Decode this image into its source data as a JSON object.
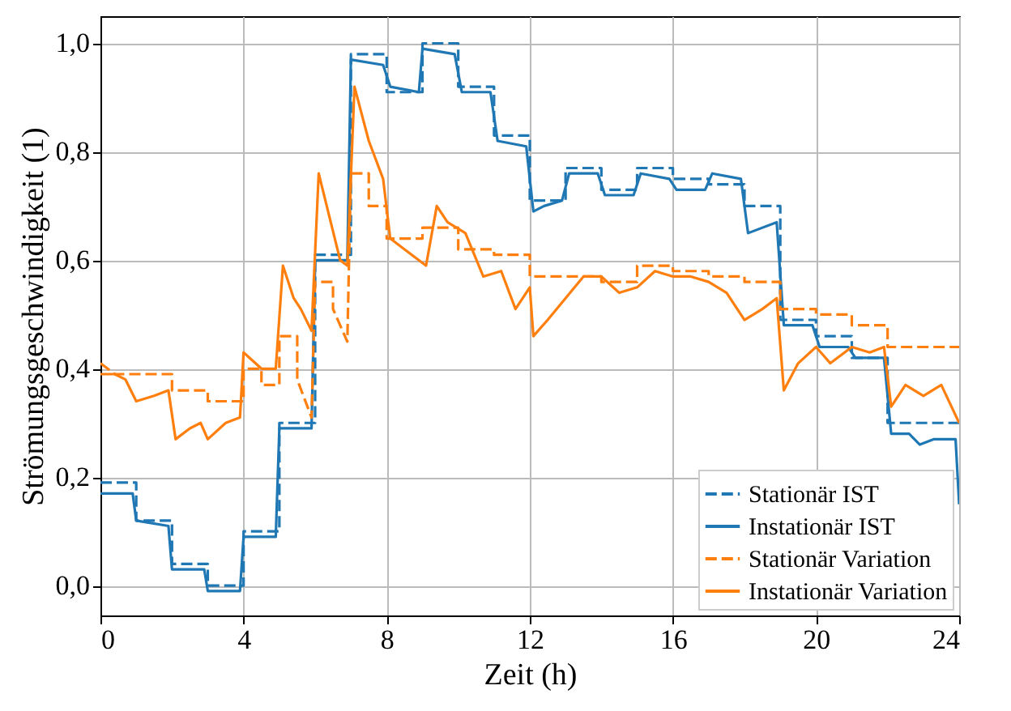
{
  "chart_data": {
    "type": "line",
    "xlabel": "Zeit (h)",
    "ylabel": "Strömungsgeschwindigkeit (1)",
    "xlim": [
      0,
      24
    ],
    "xticks": [
      0,
      4,
      8,
      12,
      16,
      20,
      24
    ],
    "ylim": [
      -0.055,
      1.05
    ],
    "yticks": [
      {
        "value": 0,
        "label": "0,0"
      },
      {
        "value": 0.2,
        "label": "0,2"
      },
      {
        "value": 0.4,
        "label": "0,4"
      },
      {
        "value": 0.6,
        "label": "0,6"
      },
      {
        "value": 0.8,
        "label": "0,8"
      },
      {
        "value": 1,
        "label": "1,0"
      }
    ],
    "grid": true,
    "legend": "bottom right",
    "series": [
      {
        "name": "Stationär IST",
        "color": "#1f77b4",
        "line_style": "dashed",
        "x": [
          0,
          1,
          1,
          2,
          2,
          3,
          3,
          4,
          4,
          5,
          5,
          6,
          6,
          7,
          7,
          8,
          8,
          9,
          9,
          10,
          10,
          11,
          11,
          12,
          12,
          13,
          13,
          14,
          14,
          15,
          15,
          16,
          16,
          17,
          17,
          18,
          18,
          19,
          19,
          20,
          20,
          21,
          21,
          22,
          22,
          24
        ],
        "values": [
          0.19,
          0.19,
          0.12,
          0.12,
          0.04,
          0.04,
          0.0,
          0.0,
          0.1,
          0.1,
          0.3,
          0.3,
          0.61,
          0.61,
          0.98,
          0.98,
          0.91,
          0.91,
          1.0,
          1.0,
          0.92,
          0.92,
          0.83,
          0.83,
          0.71,
          0.71,
          0.77,
          0.77,
          0.73,
          0.73,
          0.77,
          0.77,
          0.75,
          0.75,
          0.74,
          0.74,
          0.7,
          0.7,
          0.49,
          0.49,
          0.46,
          0.46,
          0.42,
          0.42,
          0.3,
          0.3
        ]
      },
      {
        "name": "Instationär IST",
        "color": "#1f77b4",
        "line_style": "solid",
        "x": [
          0,
          0.9,
          1,
          1.9,
          2,
          2.9,
          3,
          3.9,
          4,
          4.9,
          5,
          5.9,
          6,
          6.9,
          7,
          7.9,
          8.1,
          8.9,
          9,
          9.9,
          10.1,
          10.9,
          11.1,
          11.9,
          12.1,
          12.4,
          12.9,
          13.1,
          13.9,
          14.1,
          14.9,
          15.1,
          15.9,
          16.1,
          16.9,
          17.1,
          17.9,
          18.1,
          18.9,
          19.1,
          19.9,
          20.1,
          20.9,
          21.1,
          21.9,
          22.1,
          22.6,
          22.9,
          23.3,
          23.9,
          24
        ],
        "values": [
          0.17,
          0.17,
          0.12,
          0.11,
          0.03,
          0.03,
          -0.01,
          -0.01,
          0.09,
          0.09,
          0.29,
          0.29,
          0.6,
          0.6,
          0.97,
          0.96,
          0.92,
          0.91,
          0.99,
          0.98,
          0.91,
          0.91,
          0.82,
          0.81,
          0.69,
          0.7,
          0.71,
          0.76,
          0.76,
          0.72,
          0.72,
          0.76,
          0.75,
          0.73,
          0.73,
          0.76,
          0.75,
          0.65,
          0.67,
          0.48,
          0.48,
          0.44,
          0.44,
          0.42,
          0.42,
          0.28,
          0.28,
          0.26,
          0.27,
          0.27,
          0.15
        ]
      },
      {
        "name": "Stationär Variation",
        "color": "#ff7f0e",
        "line_style": "dashed",
        "x": [
          0,
          0.4,
          1,
          2,
          2,
          3,
          3,
          4,
          4,
          4.5,
          4.5,
          5,
          5,
          5.5,
          5.5,
          5.9,
          6,
          6.5,
          6.5,
          6.9,
          7,
          7.5,
          7.5,
          8,
          8,
          9,
          9,
          10,
          10,
          11,
          11,
          12,
          12,
          13,
          13,
          14,
          14,
          15,
          15,
          16,
          16,
          17,
          17,
          18,
          18,
          19,
          19,
          20,
          20,
          21,
          21,
          22,
          22,
          24
        ],
        "values": [
          0.41,
          0.39,
          0.39,
          0.39,
          0.36,
          0.36,
          0.34,
          0.34,
          0.4,
          0.4,
          0.37,
          0.37,
          0.46,
          0.46,
          0.38,
          0.31,
          0.56,
          0.56,
          0.51,
          0.45,
          0.76,
          0.76,
          0.7,
          0.7,
          0.64,
          0.64,
          0.66,
          0.66,
          0.62,
          0.62,
          0.61,
          0.61,
          0.57,
          0.57,
          0.57,
          0.57,
          0.56,
          0.56,
          0.59,
          0.59,
          0.58,
          0.58,
          0.57,
          0.57,
          0.56,
          0.56,
          0.51,
          0.51,
          0.5,
          0.5,
          0.48,
          0.48,
          0.44,
          0.44
        ]
      },
      {
        "name": "Instationär Variation",
        "color": "#ff7f0e",
        "line_style": "solid",
        "x": [
          0,
          0.4,
          0.7,
          1,
          1.5,
          1.9,
          2.1,
          2.5,
          2.8,
          3,
          3.5,
          3.9,
          4,
          4.5,
          4.9,
          5.1,
          5.4,
          5.6,
          5.9,
          6.1,
          6.4,
          6.7,
          6.9,
          7.1,
          7.5,
          7.9,
          8.1,
          8.5,
          9.1,
          9.4,
          9.7,
          10.2,
          10.7,
          11.2,
          11.6,
          12,
          12.1,
          12.5,
          13,
          13.5,
          14,
          14.5,
          15,
          15.5,
          16,
          16.5,
          17,
          17.5,
          18,
          18.5,
          18.9,
          19.1,
          19.5,
          20,
          20.4,
          21,
          21.5,
          21.9,
          22.1,
          22.5,
          23,
          23.5,
          24
        ],
        "values": [
          0.39,
          0.39,
          0.38,
          0.34,
          0.35,
          0.36,
          0.27,
          0.29,
          0.3,
          0.27,
          0.3,
          0.31,
          0.43,
          0.4,
          0.4,
          0.59,
          0.53,
          0.51,
          0.47,
          0.76,
          0.68,
          0.6,
          0.59,
          0.92,
          0.82,
          0.75,
          0.64,
          0.62,
          0.59,
          0.7,
          0.67,
          0.65,
          0.57,
          0.58,
          0.51,
          0.55,
          0.46,
          0.49,
          0.53,
          0.57,
          0.57,
          0.54,
          0.55,
          0.58,
          0.57,
          0.57,
          0.56,
          0.54,
          0.49,
          0.51,
          0.53,
          0.36,
          0.41,
          0.44,
          0.41,
          0.44,
          0.43,
          0.44,
          0.33,
          0.37,
          0.35,
          0.37,
          0.3
        ]
      }
    ]
  }
}
